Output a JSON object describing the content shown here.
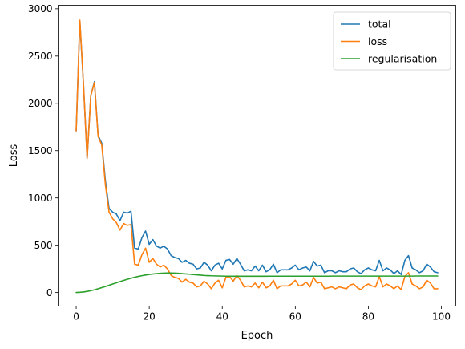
{
  "chart_data": {
    "type": "line",
    "title": "",
    "xlabel": "Epoch",
    "ylabel": "Loss",
    "xlim": [
      -4.95,
      103.95
    ],
    "ylim": [
      -143,
      3037
    ],
    "xticks": [
      0,
      20,
      40,
      60,
      80,
      100
    ],
    "yticks": [
      0,
      500,
      1000,
      1500,
      2000,
      2500,
      3000
    ],
    "grid": false,
    "legend_position": "top-right",
    "x": [
      0,
      1,
      2,
      3,
      4,
      5,
      6,
      7,
      8,
      9,
      10,
      11,
      12,
      13,
      14,
      15,
      16,
      17,
      18,
      19,
      20,
      21,
      22,
      23,
      24,
      25,
      26,
      27,
      28,
      29,
      30,
      31,
      32,
      33,
      34,
      35,
      36,
      37,
      38,
      39,
      40,
      41,
      42,
      43,
      44,
      45,
      46,
      47,
      48,
      49,
      50,
      51,
      52,
      53,
      54,
      55,
      56,
      57,
      58,
      59,
      60,
      61,
      62,
      63,
      64,
      65,
      66,
      67,
      68,
      69,
      70,
      71,
      72,
      73,
      74,
      75,
      76,
      77,
      78,
      79,
      80,
      81,
      82,
      83,
      84,
      85,
      86,
      87,
      88,
      89,
      90,
      91,
      92,
      93,
      94,
      95,
      96,
      97,
      98,
      99
    ],
    "series": [
      {
        "name": "total",
        "color": "#1f77b4",
        "values": [
          1710,
          2870,
          2200,
          1420,
          2080,
          2230,
          1660,
          1580,
          1180,
          890,
          850,
          830,
          760,
          850,
          840,
          860,
          470,
          460,
          580,
          650,
          510,
          560,
          490,
          470,
          490,
          460,
          390,
          370,
          360,
          320,
          340,
          310,
          300,
          250,
          260,
          320,
          290,
          230,
          290,
          310,
          250,
          340,
          350,
          300,
          360,
          300,
          230,
          240,
          230,
          280,
          230,
          290,
          220,
          240,
          300,
          210,
          240,
          240,
          240,
          260,
          290,
          240,
          260,
          270,
          230,
          330,
          280,
          290,
          210,
          230,
          230,
          210,
          230,
          220,
          220,
          250,
          260,
          220,
          200,
          240,
          260,
          240,
          230,
          340,
          230,
          260,
          240,
          200,
          230,
          190,
          340,
          390,
          260,
          240,
          210,
          230,
          300,
          270,
          220,
          210
        ]
      },
      {
        "name": "loss",
        "color": "#ff7f0e",
        "values": [
          1710,
          2880,
          2200,
          1420,
          2080,
          2220,
          1650,
          1560,
          1140,
          850,
          780,
          740,
          660,
          730,
          710,
          720,
          300,
          290,
          400,
          470,
          320,
          360,
          300,
          270,
          290,
          250,
          180,
          160,
          150,
          110,
          140,
          110,
          100,
          60,
          70,
          120,
          90,
          40,
          100,
          130,
          50,
          160,
          170,
          120,
          180,
          130,
          60,
          70,
          60,
          100,
          50,
          110,
          50,
          70,
          130,
          40,
          70,
          70,
          70,
          90,
          130,
          70,
          80,
          110,
          60,
          160,
          100,
          110,
          40,
          50,
          60,
          40,
          60,
          50,
          40,
          80,
          90,
          50,
          30,
          70,
          90,
          70,
          60,
          170,
          60,
          90,
          70,
          40,
          70,
          30,
          170,
          210,
          90,
          70,
          40,
          60,
          130,
          100,
          40,
          40
        ]
      },
      {
        "name": "regularisation",
        "color": "#2ca02c",
        "values": [
          1,
          3,
          6,
          12,
          20,
          29,
          40,
          52,
          64,
          77,
          90,
          103,
          116,
          128,
          140,
          151,
          161,
          170,
          178,
          185,
          191,
          196,
          200,
          203,
          205,
          206,
          206,
          205,
          203,
          200,
          197,
          194,
          190,
          187,
          184,
          181,
          179,
          177,
          176,
          175,
          174,
          173,
          173,
          172,
          172,
          172,
          172,
          172,
          172,
          172,
          172,
          172,
          172,
          173,
          173,
          173,
          173,
          173,
          173,
          173,
          173,
          173,
          173,
          173,
          173,
          173,
          173,
          173,
          173,
          173,
          174,
          174,
          174,
          174,
          174,
          174,
          174,
          174,
          174,
          174,
          174,
          174,
          174,
          174,
          174,
          174,
          174,
          174,
          174,
          174,
          174,
          174,
          174,
          175,
          175,
          175,
          175,
          175,
          175,
          175
        ]
      }
    ]
  }
}
